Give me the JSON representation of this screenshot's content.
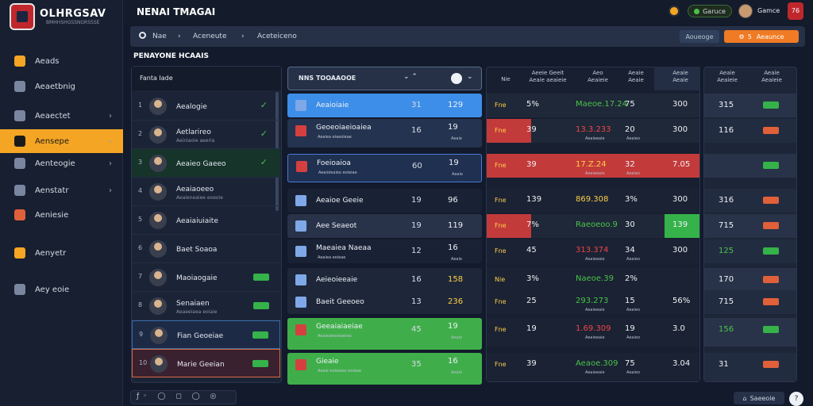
{
  "sidebar": {
    "brand": "OLHRGSAV",
    "brand_sub": "BMHHSHGSSNGRSSSE",
    "items": [
      {
        "label": "Aeads",
        "color": "#f4a524"
      },
      {
        "label": "Aeaetbnig",
        "color": "#7a86a0"
      },
      {
        "label": "Aeaectet",
        "color": "#7a86a0"
      },
      {
        "label": "Aensepe",
        "color": "#1a1a1a"
      },
      {
        "label": "Aenteogie",
        "color": "#7a86a0"
      },
      {
        "label": "Aenstatr",
        "color": "#7a86a0"
      },
      {
        "label": "Aeniesie",
        "color": "#e0603a"
      },
      {
        "label": "Aenyetr",
        "color": "#f4a524"
      },
      {
        "label": "Aey eoie",
        "color": "#7a86a0"
      }
    ]
  },
  "header": {
    "title": "NENAI TMAGAI",
    "status_pill": "Garuce",
    "user_name": "Gamce",
    "rank": "76"
  },
  "filters": {
    "search_label": "Nae",
    "crumb1": "Aceneute",
    "crumb2": "Aceteiceno",
    "right_label": "Aoueoge",
    "action_label": "Aeaunce",
    "action_count": "5"
  },
  "section_title": "PENAYONE HCAAIS",
  "left_panel": {
    "header": "Fanta Iade",
    "rows": [
      {
        "num": "1",
        "name": "Aealogie",
        "sub": ""
      },
      {
        "num": "2",
        "name": "Aetlarireo",
        "sub": "Aeiniaoie aeeria"
      },
      {
        "num": "3",
        "name": "Aeaieo Gaeeo",
        "sub": ""
      },
      {
        "num": "4",
        "name": "Aeaiaoeeo",
        "sub": "Aeaieneaiee eoeoie"
      },
      {
        "num": "5",
        "name": "Aeaiaiuiaite",
        "sub": ""
      },
      {
        "num": "6",
        "name": "Baet Soaoa",
        "sub": ""
      },
      {
        "num": "7",
        "name": "Maoiaogaie",
        "sub": ""
      },
      {
        "num": "8",
        "name": "Senaiaen",
        "sub": "Aeaeeiaea eoiaie"
      },
      {
        "num": "9",
        "name": "Fian Geoeiae",
        "sub": ""
      },
      {
        "num": "10",
        "name": "Marie Geeian",
        "sub": ""
      }
    ]
  },
  "matches_panel": {
    "header": "NNS TOOAAOOE",
    "rows": [
      {
        "name": "Aeaioiaie",
        "sub": "",
        "v1": "31",
        "v2": "129",
        "sv": "",
        "bg": "#3d8ee8"
      },
      {
        "name": "Geoeoiaeioaiea",
        "sub": "Aeaiea eiaeoieae",
        "v1": "16",
        "v2": "19",
        "sv": "Aeaie",
        "bg": "#24334f"
      },
      {
        "name": "Foeioaioa",
        "sub": "Aeaioieaieo eoieiae",
        "v1": "60",
        "v2": "19",
        "sv": "Aeaie",
        "bg": "#1f3050"
      },
      {
        "name": "Aeaioe Geeie",
        "sub": "",
        "v1": "19",
        "v2": "96",
        "sv": "",
        "bg": "#192235"
      },
      {
        "name": "Aee Seaeot",
        "sub": "",
        "v1": "19",
        "v2": "119",
        "sv": "",
        "bg": "#28334a"
      },
      {
        "name": "Maeaiea Naeaa",
        "sub": "Aeaiea eoieae",
        "v1": "12",
        "v2": "16",
        "sv": "Aeaie",
        "bg": "#192235"
      },
      {
        "name": "Aeieoieeaie",
        "sub": "",
        "v1": "16",
        "v2": "158",
        "sv": "",
        "bg": "#1d2739"
      },
      {
        "name": "Baeit Geeoeo",
        "sub": "",
        "v1": "13",
        "v2": "236",
        "sv": "",
        "bg": "#1d2739"
      },
      {
        "name": "Geeaiaiaeiae",
        "sub": "Aeaieaieoieaeieo",
        "v1": "45",
        "v2": "19",
        "sv": "Aeaie",
        "bg": "#3fae4a"
      },
      {
        "name": "Gieaie",
        "sub": "Aeaie eoieaieo eoieae",
        "v1": "35",
        "v2": "16",
        "sv": "Aeaie",
        "bg": "#3fae4a"
      }
    ]
  },
  "odds_panel": {
    "headers": [
      "Nie",
      "Aeeie Geeit Aeaie aeaieie",
      "Aeo\nAeaieie",
      "Aeaie\nAeaie",
      "Aeaie\nAeaie"
    ],
    "rows": [
      {
        "a": "Fne",
        "b": "5%",
        "c": "Maeoe.17.24",
        "cs": "",
        "d": "75",
        "ds": "",
        "e": "300",
        "c_color": "#4ac24a",
        "bg": "#1f2838"
      },
      {
        "a": "Fne",
        "b": "39",
        "c": "13.3.233",
        "cs": "Aeaieeaie",
        "d": "20",
        "ds": "Aeaieo",
        "e": "300",
        "c_color": "#f04646",
        "bg": "#c33a3a"
      },
      {
        "a": "Fne",
        "b": "39",
        "c": "17.Z.24",
        "cs": "Aeaieeaie",
        "d": "32",
        "ds": "Aeaieo",
        "e": "7.05",
        "c_color": "#ffcf4a",
        "bg": "#c33a3a"
      },
      {
        "a": "Fne",
        "b": "139",
        "c": "869.308",
        "cs": "",
        "d": "3%",
        "ds": "",
        "e": "300",
        "c_color": "#ffcf4a",
        "bg": "#1a2233"
      },
      {
        "a": "Fne",
        "b": "7%",
        "c": "Raeoeoo.9",
        "cs": "",
        "d": "30",
        "ds": "",
        "e": "139",
        "c_color": "#4ac24a",
        "bg": "#1f2838"
      },
      {
        "a": "Fne",
        "b": "45",
        "c": "313.374",
        "cs": "Aeaieeaie",
        "d": "34",
        "ds": "Aeaieo",
        "e": "300",
        "c_color": "#f04646",
        "bg": "#1a2233"
      },
      {
        "a": "Nie",
        "b": "3%",
        "c": "Naeoe.39",
        "cs": "",
        "d": "2%",
        "ds": "",
        "e": "",
        "c_color": "#4ac24a",
        "bg": "#1a2233"
      },
      {
        "a": "Fne",
        "b": "25",
        "c": "293.273",
        "cs": "Aeaieeaie",
        "d": "15",
        "ds": "Aeaieo",
        "e": "56%",
        "c_color": "#4ac24a",
        "bg": "#1a2233"
      },
      {
        "a": "Fne",
        "b": "19",
        "c": "1.69.309",
        "cs": "Aeaieeaie",
        "d": "19",
        "ds": "Aeaieo",
        "e": "3.0",
        "c_color": "#f04646",
        "bg": "#1a2233"
      },
      {
        "a": "Fne",
        "b": "39",
        "c": "Aeaoe.309",
        "cs": "Aeaieeaie",
        "d": "75",
        "ds": "Aeaieo",
        "e": "3.04",
        "c_color": "#4ac24a",
        "bg": "#1a2233"
      }
    ]
  },
  "far_panel": {
    "headers": [
      "Aeaie\nAeaieie",
      "Aeaie\nAeaieie"
    ],
    "rows": [
      {
        "v": "315",
        "tag": "#35b24a"
      },
      {
        "v": "116",
        "tag": "#e0603a"
      },
      {
        "v": "",
        "tag": "#35b24a"
      },
      {
        "v": "316",
        "tag": "#e0603a"
      },
      {
        "v": "715",
        "tag": "#e0603a"
      },
      {
        "v": "125",
        "tag": "#35b24a"
      },
      {
        "v": "170",
        "tag": "#e0603a"
      },
      {
        "v": "715",
        "tag": "#e0603a"
      },
      {
        "v": "156",
        "tag": "#35b24a"
      },
      {
        "v": "31",
        "tag": "#e0603a"
      }
    ]
  },
  "footer": {
    "label": "Saeeoie"
  }
}
